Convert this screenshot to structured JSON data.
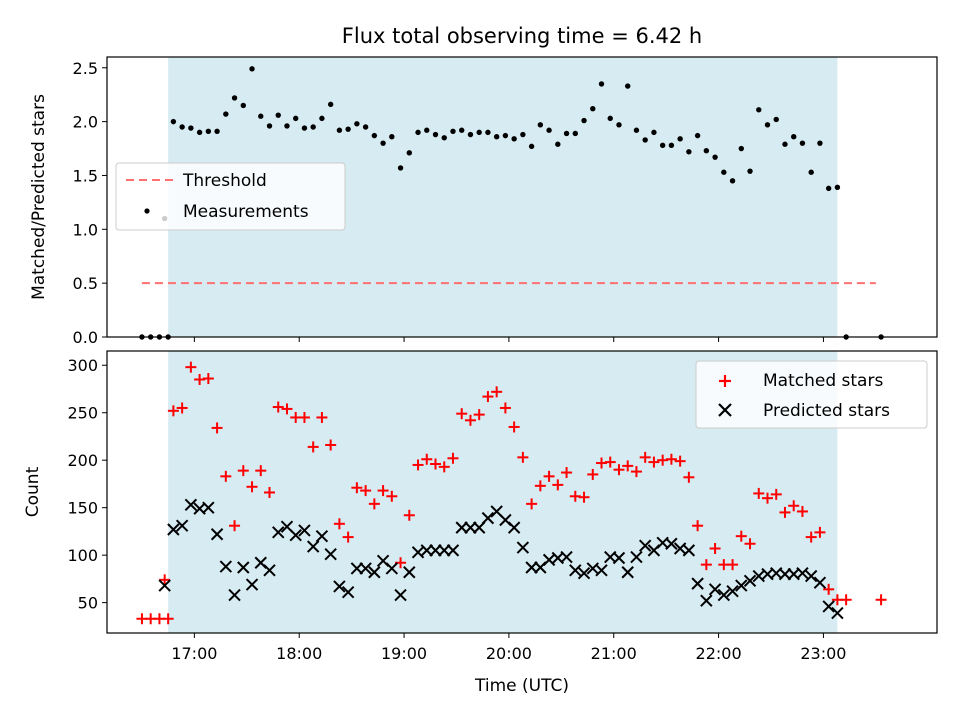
{
  "chart_data": [
    {
      "type": "scatter",
      "title": "Flux total observing time = 6.42 h",
      "ylabel": "Matched/Predicted stars",
      "xlim": [
        "16:10",
        "24:05"
      ],
      "ylim": [
        0,
        2.6
      ],
      "yticks": [
        0.0,
        0.5,
        1.0,
        1.5,
        2.0,
        2.5
      ],
      "ytick_labels": [
        "0.0",
        "0.5",
        "1.0",
        "1.5",
        "2.0",
        "2.5"
      ],
      "shaded_interval": [
        "16:45",
        "23:08"
      ],
      "shaded_color": "#add8e6",
      "legend_position": "center-left",
      "threshold": {
        "name": "Threshold",
        "value": 0.5,
        "x_range": [
          "16:30",
          "23:30"
        ],
        "color": "#ff7070"
      },
      "series": [
        {
          "name": "Measurements",
          "marker": "dot",
          "color": "#000000",
          "points": [
            [
              "16:30",
              0.0
            ],
            [
              "16:35",
              0.0
            ],
            [
              "16:40",
              0.0
            ],
            [
              "16:45",
              0.0
            ],
            [
              "16:43",
              1.1
            ],
            [
              "16:48",
              2.0
            ],
            [
              "16:53",
              1.95
            ],
            [
              "16:58",
              1.94
            ],
            [
              "17:03",
              1.9
            ],
            [
              "17:08",
              1.91
            ],
            [
              "17:13",
              1.91
            ],
            [
              "17:18",
              2.07
            ],
            [
              "17:23",
              2.22
            ],
            [
              "17:28",
              2.15
            ],
            [
              "17:33",
              2.49
            ],
            [
              "17:38",
              2.05
            ],
            [
              "17:43",
              1.96
            ],
            [
              "17:48",
              2.06
            ],
            [
              "17:53",
              1.96
            ],
            [
              "17:58",
              2.03
            ],
            [
              "18:03",
              1.94
            ],
            [
              "18:08",
              1.95
            ],
            [
              "18:13",
              2.03
            ],
            [
              "18:18",
              2.16
            ],
            [
              "18:23",
              1.92
            ],
            [
              "18:28",
              1.93
            ],
            [
              "18:33",
              1.98
            ],
            [
              "18:38",
              1.95
            ],
            [
              "18:43",
              1.87
            ],
            [
              "18:48",
              1.8
            ],
            [
              "18:53",
              1.86
            ],
            [
              "18:58",
              1.57
            ],
            [
              "19:03",
              1.71
            ],
            [
              "19:08",
              1.9
            ],
            [
              "19:13",
              1.92
            ],
            [
              "19:18",
              1.88
            ],
            [
              "19:23",
              1.85
            ],
            [
              "19:28",
              1.91
            ],
            [
              "19:33",
              1.92
            ],
            [
              "19:38",
              1.88
            ],
            [
              "19:43",
              1.9
            ],
            [
              "19:48",
              1.9
            ],
            [
              "19:53",
              1.86
            ],
            [
              "19:58",
              1.87
            ],
            [
              "20:03",
              1.84
            ],
            [
              "20:08",
              1.88
            ],
            [
              "20:13",
              1.77
            ],
            [
              "20:18",
              1.97
            ],
            [
              "20:23",
              1.92
            ],
            [
              "20:28",
              1.79
            ],
            [
              "20:33",
              1.89
            ],
            [
              "20:38",
              1.89
            ],
            [
              "20:43",
              2.01
            ],
            [
              "20:48",
              2.12
            ],
            [
              "20:53",
              2.35
            ],
            [
              "20:58",
              2.03
            ],
            [
              "21:03",
              1.97
            ],
            [
              "21:08",
              2.33
            ],
            [
              "21:13",
              1.92
            ],
            [
              "21:18",
              1.83
            ],
            [
              "21:23",
              1.9
            ],
            [
              "21:28",
              1.78
            ],
            [
              "21:33",
              1.78
            ],
            [
              "21:38",
              1.84
            ],
            [
              "21:43",
              1.72
            ],
            [
              "21:48",
              1.87
            ],
            [
              "21:53",
              1.73
            ],
            [
              "21:58",
              1.67
            ],
            [
              "22:03",
              1.53
            ],
            [
              "22:08",
              1.45
            ],
            [
              "22:13",
              1.75
            ],
            [
              "22:18",
              1.54
            ],
            [
              "22:23",
              2.11
            ],
            [
              "22:28",
              1.97
            ],
            [
              "22:33",
              2.02
            ],
            [
              "22:38",
              1.79
            ],
            [
              "22:43",
              1.86
            ],
            [
              "22:48",
              1.8
            ],
            [
              "22:53",
              1.53
            ],
            [
              "22:58",
              1.8
            ],
            [
              "23:03",
              1.38
            ],
            [
              "23:08",
              1.39
            ],
            [
              "23:13",
              0.0
            ],
            [
              "23:33",
              0.0
            ]
          ]
        }
      ]
    },
    {
      "type": "scatter",
      "xlabel": "Time (UTC)",
      "ylabel": "Count",
      "xlim": [
        "16:10",
        "24:05"
      ],
      "ylim": [
        18,
        315
      ],
      "yticks": [
        50,
        100,
        150,
        200,
        250,
        300
      ],
      "ytick_labels": [
        "50",
        "100",
        "150",
        "200",
        "250",
        "300"
      ],
      "xticks": [
        "17:00",
        "18:00",
        "19:00",
        "20:00",
        "21:00",
        "22:00",
        "23:00"
      ],
      "xtick_labels": [
        "17:00",
        "18:00",
        "19:00",
        "20:00",
        "21:00",
        "22:00",
        "23:00"
      ],
      "shaded_interval": [
        "16:45",
        "23:08"
      ],
      "shaded_color": "#add8e6",
      "legend_position": "top-right",
      "series": [
        {
          "name": "Matched stars",
          "marker": "plus",
          "color": "#ff0000",
          "points": [
            [
              "16:30",
              33
            ],
            [
              "16:35",
              33
            ],
            [
              "16:40",
              33
            ],
            [
              "16:45",
              33
            ],
            [
              "16:43",
              74
            ],
            [
              "16:48",
              252
            ],
            [
              "16:53",
              255
            ],
            [
              "16:58",
              298
            ],
            [
              "17:03",
              285
            ],
            [
              "17:08",
              286
            ],
            [
              "17:13",
              234
            ],
            [
              "17:18",
              183
            ],
            [
              "17:23",
              131
            ],
            [
              "17:28",
              189
            ],
            [
              "17:33",
              172
            ],
            [
              "17:38",
              189
            ],
            [
              "17:43",
              166
            ],
            [
              "17:48",
              256
            ],
            [
              "17:53",
              254
            ],
            [
              "17:58",
              245
            ],
            [
              "18:03",
              245
            ],
            [
              "18:08",
              214
            ],
            [
              "18:13",
              245
            ],
            [
              "18:18",
              216
            ],
            [
              "18:23",
              133
            ],
            [
              "18:28",
              119
            ],
            [
              "18:33",
              171
            ],
            [
              "18:38",
              168
            ],
            [
              "18:43",
              154
            ],
            [
              "18:48",
              168
            ],
            [
              "18:53",
              162
            ],
            [
              "18:58",
              92
            ],
            [
              "19:03",
              142
            ],
            [
              "19:08",
              195
            ],
            [
              "19:13",
              201
            ],
            [
              "19:18",
              196
            ],
            [
              "19:23",
              193
            ],
            [
              "19:28",
              202
            ],
            [
              "19:33",
              249
            ],
            [
              "19:38",
              242
            ],
            [
              "19:43",
              248
            ],
            [
              "19:48",
              267
            ],
            [
              "19:53",
              272
            ],
            [
              "19:58",
              255
            ],
            [
              "20:03",
              235
            ],
            [
              "20:08",
              203
            ],
            [
              "20:13",
              154
            ],
            [
              "20:18",
              173
            ],
            [
              "20:23",
              183
            ],
            [
              "20:28",
              174
            ],
            [
              "20:33",
              187
            ],
            [
              "20:38",
              162
            ],
            [
              "20:43",
              161
            ],
            [
              "20:48",
              185
            ],
            [
              "20:53",
              197
            ],
            [
              "20:58",
              198
            ],
            [
              "21:03",
              190
            ],
            [
              "21:08",
              194
            ],
            [
              "21:13",
              188
            ],
            [
              "21:18",
              203
            ],
            [
              "21:23",
              198
            ],
            [
              "21:28",
              200
            ],
            [
              "21:33",
              201
            ],
            [
              "21:38",
              199
            ],
            [
              "21:43",
              182
            ],
            [
              "21:48",
              131
            ],
            [
              "21:53",
              90
            ],
            [
              "21:58",
              107
            ],
            [
              "22:03",
              90
            ],
            [
              "22:08",
              90
            ],
            [
              "22:13",
              120
            ],
            [
              "22:18",
              112
            ],
            [
              "22:23",
              165
            ],
            [
              "22:28",
              160
            ],
            [
              "22:33",
              164
            ],
            [
              "22:38",
              145
            ],
            [
              "22:43",
              152
            ],
            [
              "22:48",
              146
            ],
            [
              "22:53",
              119
            ],
            [
              "22:58",
              124
            ],
            [
              "23:03",
              64
            ],
            [
              "23:08",
              53
            ],
            [
              "23:13",
              53
            ],
            [
              "23:33",
              53
            ]
          ]
        },
        {
          "name": "Predicted stars",
          "marker": "x",
          "color": "#000000",
          "points": [
            [
              "16:43",
              68
            ],
            [
              "16:48",
              127
            ],
            [
              "16:53",
              131
            ],
            [
              "16:58",
              153
            ],
            [
              "17:03",
              149
            ],
            [
              "17:08",
              150
            ],
            [
              "17:13",
              122
            ],
            [
              "17:18",
              88
            ],
            [
              "17:23",
              58
            ],
            [
              "17:28",
              87
            ],
            [
              "17:33",
              69
            ],
            [
              "17:38",
              92
            ],
            [
              "17:43",
              84
            ],
            [
              "17:48",
              124
            ],
            [
              "17:53",
              130
            ],
            [
              "17:58",
              121
            ],
            [
              "18:03",
              126
            ],
            [
              "18:08",
              109
            ],
            [
              "18:13",
              120
            ],
            [
              "18:18",
              101
            ],
            [
              "18:23",
              67
            ],
            [
              "18:28",
              61
            ],
            [
              "18:33",
              86
            ],
            [
              "18:38",
              86
            ],
            [
              "18:43",
              82
            ],
            [
              "18:48",
              94
            ],
            [
              "18:53",
              86
            ],
            [
              "18:58",
              58
            ],
            [
              "19:03",
              82
            ],
            [
              "19:08",
              103
            ],
            [
              "19:13",
              105
            ],
            [
              "19:18",
              105
            ],
            [
              "19:23",
              105
            ],
            [
              "19:28",
              105
            ],
            [
              "19:33",
              129
            ],
            [
              "19:38",
              129
            ],
            [
              "19:43",
              129
            ],
            [
              "19:48",
              139
            ],
            [
              "19:53",
              146
            ],
            [
              "19:58",
              137
            ],
            [
              "20:03",
              129
            ],
            [
              "20:08",
              108
            ],
            [
              "20:13",
              87
            ],
            [
              "20:18",
              87
            ],
            [
              "20:23",
              95
            ],
            [
              "20:28",
              97
            ],
            [
              "20:33",
              98
            ],
            [
              "20:38",
              84
            ],
            [
              "20:43",
              81
            ],
            [
              "20:48",
              86
            ],
            [
              "20:53",
              84
            ],
            [
              "20:58",
              98
            ],
            [
              "21:03",
              97
            ],
            [
              "21:08",
              82
            ],
            [
              "21:13",
              98
            ],
            [
              "21:18",
              110
            ],
            [
              "21:23",
              105
            ],
            [
              "21:28",
              113
            ],
            [
              "21:33",
              112
            ],
            [
              "21:38",
              107
            ],
            [
              "21:43",
              105
            ],
            [
              "21:48",
              70
            ],
            [
              "21:53",
              52
            ],
            [
              "21:58",
              64
            ],
            [
              "22:03",
              58
            ],
            [
              "22:08",
              62
            ],
            [
              "22:13",
              68
            ],
            [
              "22:18",
              73
            ],
            [
              "22:23",
              78
            ],
            [
              "22:28",
              80
            ],
            [
              "22:33",
              81
            ],
            [
              "22:38",
              80
            ],
            [
              "22:43",
              80
            ],
            [
              "22:48",
              81
            ],
            [
              "22:53",
              78
            ],
            [
              "22:58",
              71
            ],
            [
              "23:03",
              46
            ],
            [
              "23:08",
              39
            ]
          ]
        }
      ]
    }
  ]
}
